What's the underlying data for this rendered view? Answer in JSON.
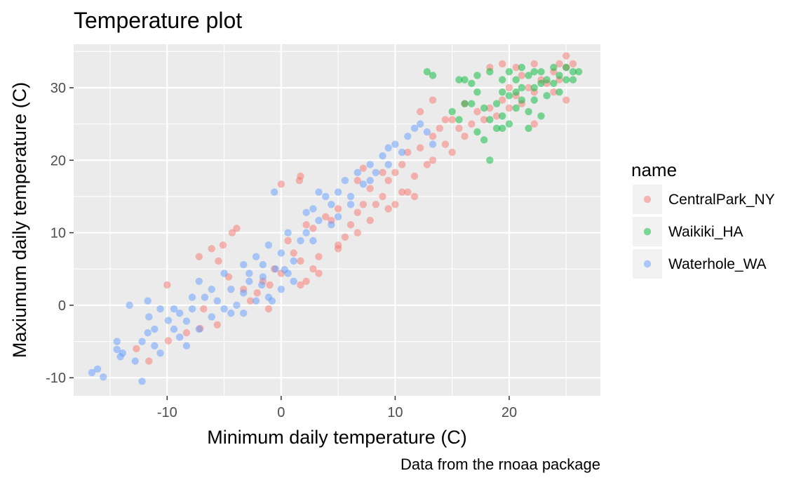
{
  "chart_data": {
    "type": "scatter",
    "title": "Temperature plot",
    "xlabel": "Minimum daily temperature (C)",
    "ylabel": "Maxiumum daily temperature (C)",
    "caption": "Data from the rnoaa package",
    "xlim": [
      -18.2,
      28.0
    ],
    "ylim": [
      -12.5,
      36.0
    ],
    "x_ticks": [
      -10,
      0,
      10,
      20
    ],
    "y_ticks": [
      -10,
      0,
      10,
      20,
      30
    ],
    "grid": true,
    "legend": {
      "title": "name",
      "position": "right"
    },
    "point_alpha": 0.5,
    "series": [
      {
        "name": "CentralPark_NY",
        "color": "#F8766D",
        "points": [
          [
            -12.7,
            -6.0
          ],
          [
            -11.6,
            -7.7
          ],
          [
            -9.9,
            -4.9
          ],
          [
            -10.0,
            2.8
          ],
          [
            -8.3,
            -3.8
          ],
          [
            -7.1,
            -3.2
          ],
          [
            -6.8,
            -0.5
          ],
          [
            -7.2,
            6.7
          ],
          [
            -6.1,
            7.8
          ],
          [
            -5.5,
            6.1
          ],
          [
            -5.1,
            8.3
          ],
          [
            -4.3,
            10.0
          ],
          [
            -3.9,
            10.6
          ],
          [
            -4.6,
            3.9
          ],
          [
            -3.3,
            2.2
          ],
          [
            -2.7,
            0.6
          ],
          [
            -2.1,
            1.7
          ],
          [
            -1.6,
            3.3
          ],
          [
            -1.0,
            2.8
          ],
          [
            -0.6,
            5.0
          ],
          [
            0.0,
            4.4
          ],
          [
            0.0,
            16.7
          ],
          [
            0.6,
            8.9
          ],
          [
            1.1,
            7.2
          ],
          [
            1.7,
            6.1
          ],
          [
            1.6,
            17.2
          ],
          [
            1.7,
            17.8
          ],
          [
            2.2,
            11.1
          ],
          [
            2.8,
            10.6
          ],
          [
            2.2,
            3.3
          ],
          [
            2.8,
            5.0
          ],
          [
            3.3,
            6.7
          ],
          [
            3.9,
            12.2
          ],
          [
            4.4,
            11.7
          ],
          [
            5.0,
            13.3
          ],
          [
            5.0,
            8.3
          ],
          [
            5.6,
            9.4
          ],
          [
            6.1,
            11.1
          ],
          [
            6.7,
            12.8
          ],
          [
            6.7,
            17.2
          ],
          [
            7.2,
            13.9
          ],
          [
            7.2,
            18.9
          ],
          [
            7.8,
            16.1
          ],
          [
            7.8,
            11.7
          ],
          [
            8.3,
            13.9
          ],
          [
            8.9,
            18.3
          ],
          [
            8.9,
            15.0
          ],
          [
            9.4,
            17.2
          ],
          [
            10.0,
            18.3
          ],
          [
            10.0,
            13.9
          ],
          [
            10.6,
            19.4
          ],
          [
            11.1,
            15.6
          ],
          [
            11.1,
            21.1
          ],
          [
            11.7,
            17.8
          ],
          [
            12.2,
            21.7
          ],
          [
            12.2,
            26.7
          ],
          [
            12.8,
            19.4
          ],
          [
            13.3,
            23.3
          ],
          [
            13.3,
            20.0
          ],
          [
            13.9,
            24.4
          ],
          [
            14.4,
            22.2
          ],
          [
            15.0,
            21.1
          ],
          [
            15.0,
            25.6
          ],
          [
            15.6,
            24.4
          ],
          [
            16.1,
            23.3
          ],
          [
            16.7,
            25.0
          ],
          [
            16.1,
            27.8
          ],
          [
            17.2,
            26.7
          ],
          [
            17.8,
            25.6
          ],
          [
            18.3,
            27.2
          ],
          [
            18.9,
            26.1
          ],
          [
            19.4,
            28.3
          ],
          [
            20.0,
            27.2
          ],
          [
            20.0,
            30.0
          ],
          [
            20.6,
            28.9
          ],
          [
            21.1,
            27.8
          ],
          [
            21.1,
            31.7
          ],
          [
            21.7,
            30.0
          ],
          [
            22.2,
            29.4
          ],
          [
            22.2,
            25.0
          ],
          [
            22.8,
            31.1
          ],
          [
            23.3,
            30.6
          ],
          [
            23.9,
            32.2
          ],
          [
            24.4,
            33.3
          ],
          [
            24.4,
            31.1
          ],
          [
            25.0,
            32.8
          ],
          [
            25.0,
            34.4
          ],
          [
            25.6,
            33.3
          ],
          [
            25.0,
            28.3
          ],
          [
            23.9,
            29.4
          ],
          [
            22.2,
            33.3
          ],
          [
            20.6,
            32.8
          ],
          [
            19.4,
            33.3
          ],
          [
            18.3,
            32.8
          ],
          [
            14.4,
            25.6
          ],
          [
            13.3,
            28.3
          ],
          [
            11.7,
            15.0
          ],
          [
            10.6,
            15.6
          ],
          [
            9.4,
            13.3
          ],
          [
            6.7,
            10.0
          ],
          [
            5.0,
            7.8
          ],
          [
            3.3,
            4.4
          ],
          [
            1.7,
            2.8
          ],
          [
            -1.1,
            -0.5
          ],
          [
            -5.6,
            -2.7
          ]
        ]
      },
      {
        "name": "Waikiki_HA",
        "color": "#00BA38",
        "points": [
          [
            12.8,
            32.2
          ],
          [
            13.3,
            31.7
          ],
          [
            15.0,
            26.7
          ],
          [
            15.6,
            25.6
          ],
          [
            16.1,
            27.8
          ],
          [
            15.6,
            31.1
          ],
          [
            16.1,
            31.1
          ],
          [
            16.7,
            30.6
          ],
          [
            17.2,
            29.4
          ],
          [
            17.2,
            23.9
          ],
          [
            17.8,
            22.8
          ],
          [
            18.3,
            20.0
          ],
          [
            18.3,
            25.6
          ],
          [
            18.9,
            24.4
          ],
          [
            18.9,
            27.8
          ],
          [
            19.4,
            29.4
          ],
          [
            19.4,
            26.1
          ],
          [
            20.0,
            28.9
          ],
          [
            20.0,
            25.0
          ],
          [
            20.6,
            27.2
          ],
          [
            20.6,
            31.1
          ],
          [
            21.1,
            28.3
          ],
          [
            21.1,
            30.0
          ],
          [
            21.7,
            26.7
          ],
          [
            21.7,
            31.7
          ],
          [
            22.2,
            30.0
          ],
          [
            22.2,
            28.3
          ],
          [
            22.8,
            30.6
          ],
          [
            22.8,
            32.2
          ],
          [
            23.3,
            31.1
          ],
          [
            23.3,
            28.9
          ],
          [
            23.9,
            30.6
          ],
          [
            23.9,
            32.8
          ],
          [
            24.4,
            31.7
          ],
          [
            24.4,
            29.4
          ],
          [
            25.0,
            31.1
          ],
          [
            25.0,
            32.8
          ],
          [
            25.6,
            32.2
          ],
          [
            25.6,
            31.1
          ],
          [
            26.1,
            32.2
          ],
          [
            17.2,
            31.7
          ],
          [
            18.3,
            32.2
          ],
          [
            19.4,
            31.1
          ],
          [
            20.0,
            32.2
          ],
          [
            21.1,
            32.8
          ],
          [
            22.2,
            32.2
          ],
          [
            21.7,
            24.4
          ],
          [
            22.8,
            26.1
          ],
          [
            16.7,
            27.8
          ],
          [
            17.8,
            27.2
          ],
          [
            19.4,
            24.4
          ],
          [
            20.6,
            29.4
          ]
        ]
      },
      {
        "name": "Waterhole_WA",
        "color": "#619CFF",
        "points": [
          [
            -16.6,
            -9.3
          ],
          [
            -16.1,
            -8.8
          ],
          [
            -15.6,
            -9.9
          ],
          [
            -14.4,
            -5.0
          ],
          [
            -14.4,
            -6.1
          ],
          [
            -14.1,
            -7.1
          ],
          [
            -13.3,
            0.0
          ],
          [
            -12.8,
            -7.7
          ],
          [
            -12.2,
            -10.5
          ],
          [
            -12.2,
            -5.0
          ],
          [
            -11.7,
            -3.8
          ],
          [
            -11.6,
            -1.6
          ],
          [
            -11.7,
            0.6
          ],
          [
            -11.1,
            -3.3
          ],
          [
            -10.6,
            -6.6
          ],
          [
            -10.6,
            -0.5
          ],
          [
            -9.9,
            -2.1
          ],
          [
            -9.4,
            -3.3
          ],
          [
            -8.9,
            -4.4
          ],
          [
            -8.3,
            -5.6
          ],
          [
            -8.3,
            -2.2
          ],
          [
            -7.8,
            -0.5
          ],
          [
            -7.2,
            -3.3
          ],
          [
            -7.2,
            3.3
          ],
          [
            -6.7,
            1.1
          ],
          [
            -6.1,
            -1.6
          ],
          [
            -5.6,
            0.6
          ],
          [
            -5.0,
            -0.5
          ],
          [
            -5.0,
            4.4
          ],
          [
            -4.4,
            2.2
          ],
          [
            -3.9,
            0.0
          ],
          [
            -3.3,
            1.7
          ],
          [
            -3.3,
            5.6
          ],
          [
            -2.8,
            3.3
          ],
          [
            -2.2,
            0.6
          ],
          [
            -2.2,
            6.7
          ],
          [
            -1.6,
            3.9
          ],
          [
            -1.1,
            1.1
          ],
          [
            -1.1,
            8.3
          ],
          [
            -0.5,
            5.0
          ],
          [
            0.0,
            2.2
          ],
          [
            0.0,
            7.2
          ],
          [
            0.6,
            4.4
          ],
          [
            0.6,
            10.0
          ],
          [
            1.1,
            6.1
          ],
          [
            1.7,
            8.9
          ],
          [
            2.2,
            12.8
          ],
          [
            2.2,
            10.0
          ],
          [
            2.8,
            13.3
          ],
          [
            3.3,
            11.7
          ],
          [
            3.9,
            15.0
          ],
          [
            4.4,
            13.9
          ],
          [
            5.0,
            15.6
          ],
          [
            5.0,
            12.2
          ],
          [
            5.6,
            17.2
          ],
          [
            6.1,
            15.0
          ],
          [
            6.7,
            18.3
          ],
          [
            7.2,
            16.7
          ],
          [
            7.8,
            19.4
          ],
          [
            8.3,
            18.3
          ],
          [
            8.9,
            20.6
          ],
          [
            9.4,
            21.7
          ],
          [
            9.4,
            19.4
          ],
          [
            10.0,
            22.2
          ],
          [
            10.6,
            21.1
          ],
          [
            11.1,
            23.3
          ],
          [
            11.7,
            24.4
          ],
          [
            12.2,
            25.0
          ],
          [
            12.8,
            23.9
          ],
          [
            13.3,
            22.2
          ],
          [
            -0.6,
            15.6
          ],
          [
            -3.3,
            -1.1
          ],
          [
            -1.7,
            2.8
          ],
          [
            -0.8,
            0.6
          ],
          [
            0.3,
            4.9
          ],
          [
            -4.4,
            -1.1
          ],
          [
            -2.8,
            4.4
          ],
          [
            1.1,
            3.3
          ],
          [
            -6.1,
            2.2
          ],
          [
            -8.9,
            -1.1
          ],
          [
            -9.4,
            -0.5
          ],
          [
            -11.1,
            -5.6
          ],
          [
            -13.9,
            -6.6
          ],
          [
            -7.8,
            1.1
          ],
          [
            -1.6,
            5.6
          ],
          [
            2.8,
            8.9
          ],
          [
            4.4,
            11.1
          ],
          [
            6.1,
            13.9
          ],
          [
            7.8,
            17.2
          ],
          [
            3.3,
            15.6
          ]
        ]
      }
    ]
  }
}
